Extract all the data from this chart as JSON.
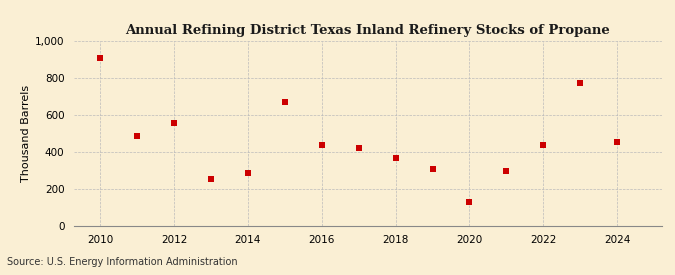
{
  "title": "Annual Refining District Texas Inland Refinery Stocks of Propane",
  "ylabel": "Thousand Barrels",
  "source": "Source: U.S. Energy Information Administration",
  "background_color": "#faefd4",
  "marker_color": "#cc0000",
  "years": [
    2010,
    2011,
    2012,
    2013,
    2014,
    2015,
    2016,
    2017,
    2018,
    2019,
    2020,
    2021,
    2022,
    2023,
    2024
  ],
  "values": [
    910,
    485,
    555,
    255,
    285,
    670,
    435,
    420,
    365,
    305,
    130,
    295,
    435,
    775,
    455
  ],
  "ylim": [
    0,
    1000
  ],
  "yticks": [
    0,
    200,
    400,
    600,
    800,
    1000
  ],
  "ytick_labels": [
    "0",
    "200",
    "400",
    "600",
    "800",
    "1,000"
  ],
  "xlim": [
    2009.3,
    2025.2
  ],
  "xticks": [
    2010,
    2012,
    2014,
    2016,
    2018,
    2020,
    2022,
    2024
  ]
}
